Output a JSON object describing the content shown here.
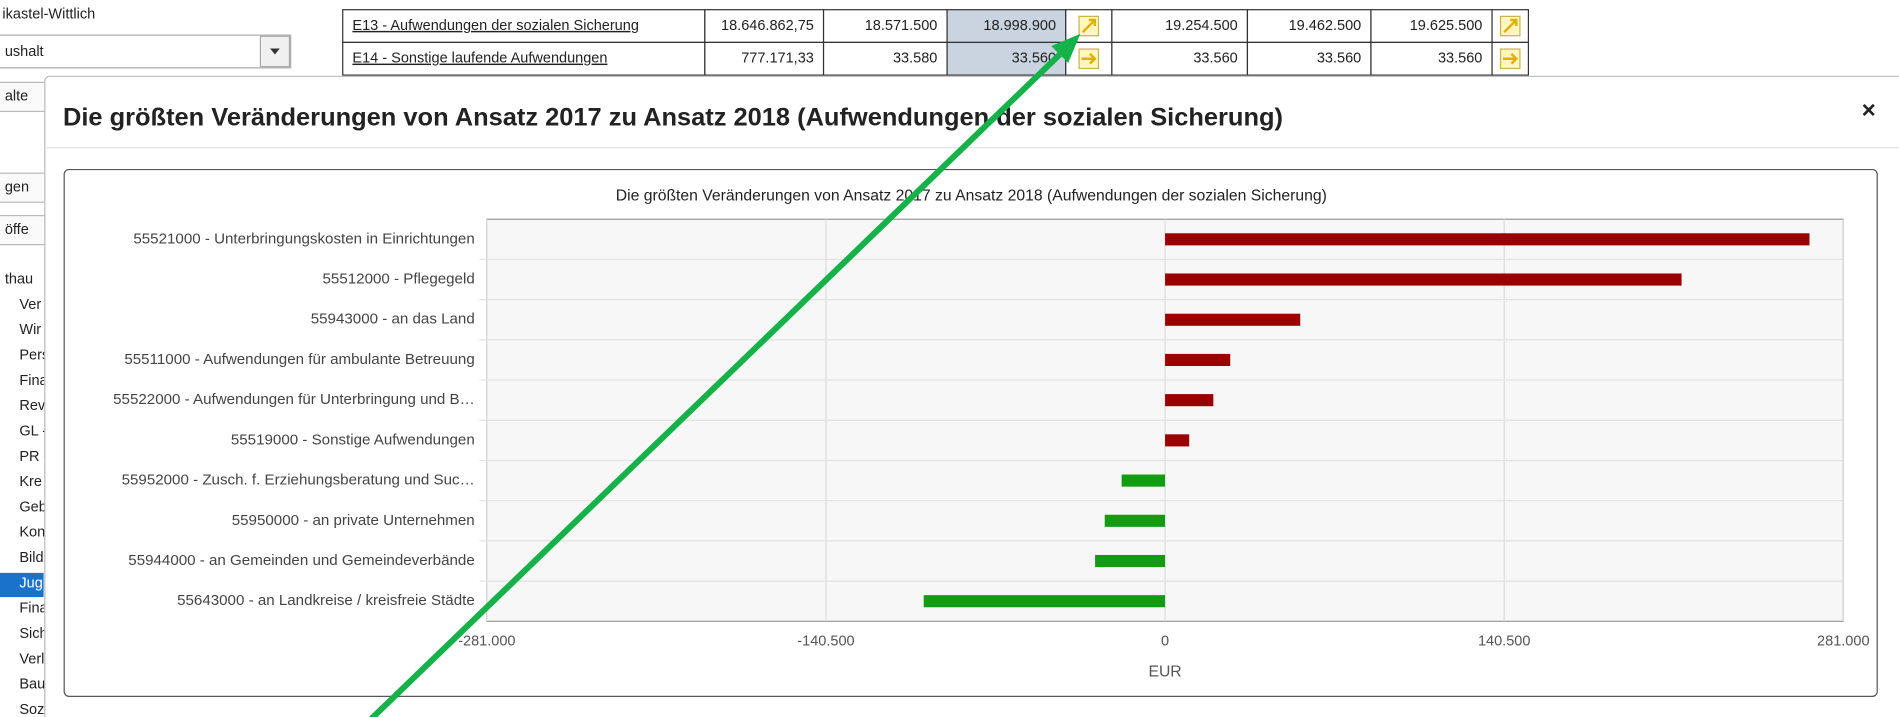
{
  "sidebar": {
    "location": "ikastel-Wittlich",
    "dropdown": "ushalt",
    "items_top": [
      "alte",
      "gen",
      "öffe"
    ],
    "items": [
      "thau",
      "Ver",
      "Wir",
      "Pers",
      "Fina",
      "Rev",
      "GL -",
      "PR -",
      "Kre",
      "Geb",
      "Kon",
      "Bild",
      "Jug",
      "Fina",
      "Sich",
      "Verl",
      "Bau",
      "Soz"
    ]
  },
  "table": {
    "rows": [
      [
        "E13 - Aufwendungen der sozialen Sicherung",
        "18.646.862,75",
        "18.571.500",
        "18.998.900",
        "19.254.500",
        "19.462.500",
        "19.625.500"
      ],
      [
        "E14 - Sonstige laufende Aufwendungen",
        "777.171,33",
        "33.580",
        "33.560",
        "33.560",
        "33.560",
        "33.560"
      ]
    ]
  },
  "modal": {
    "title": "Die größten Veränderungen von Ansatz 2017 zu Ansatz 2018 (Aufwendungen der sozialen Sicherung)",
    "close": "×"
  },
  "chart_data": {
    "type": "barh",
    "title": "Die größten Veränderungen von Ansatz 2017 zu Ansatz 2018 (Aufwendungen der sozialen Sicherung)",
    "categories": [
      "55521000 - Unterbringungskosten in Einrichtungen",
      "55512000 - Pflegegeld",
      "55943000 - an das Land",
      "55511000 - Aufwendungen für ambulante Betreuung",
      "55522000 - Aufwendungen für Unterbringung und B…",
      "55519000 - Sonstige Aufwendungen",
      "55952000 - Zusch. f. Erziehungsberatung und Suc…",
      "55950000 - an private Unternehmen",
      "55944000 - an Gemeinden und Gemeindeverbände",
      "55643000 - an Landkreise / kreisfreie Städte"
    ],
    "values": [
      267000,
      214000,
      56000,
      27000,
      20000,
      10000,
      -18000,
      -25000,
      -29000,
      -100000
    ],
    "color_positive": "#9b0000",
    "color_negative": "#119c11",
    "xlabel": "EUR",
    "xlim": [
      -281000,
      281000
    ],
    "xticks": [
      {
        "value": -281000,
        "label": "-281.000"
      },
      {
        "value": -140500,
        "label": "-140.500"
      },
      0,
      {
        "value": 140500,
        "label": "140.500"
      },
      {
        "value": 281000,
        "label": "281.000"
      }
    ],
    "grid": true
  }
}
